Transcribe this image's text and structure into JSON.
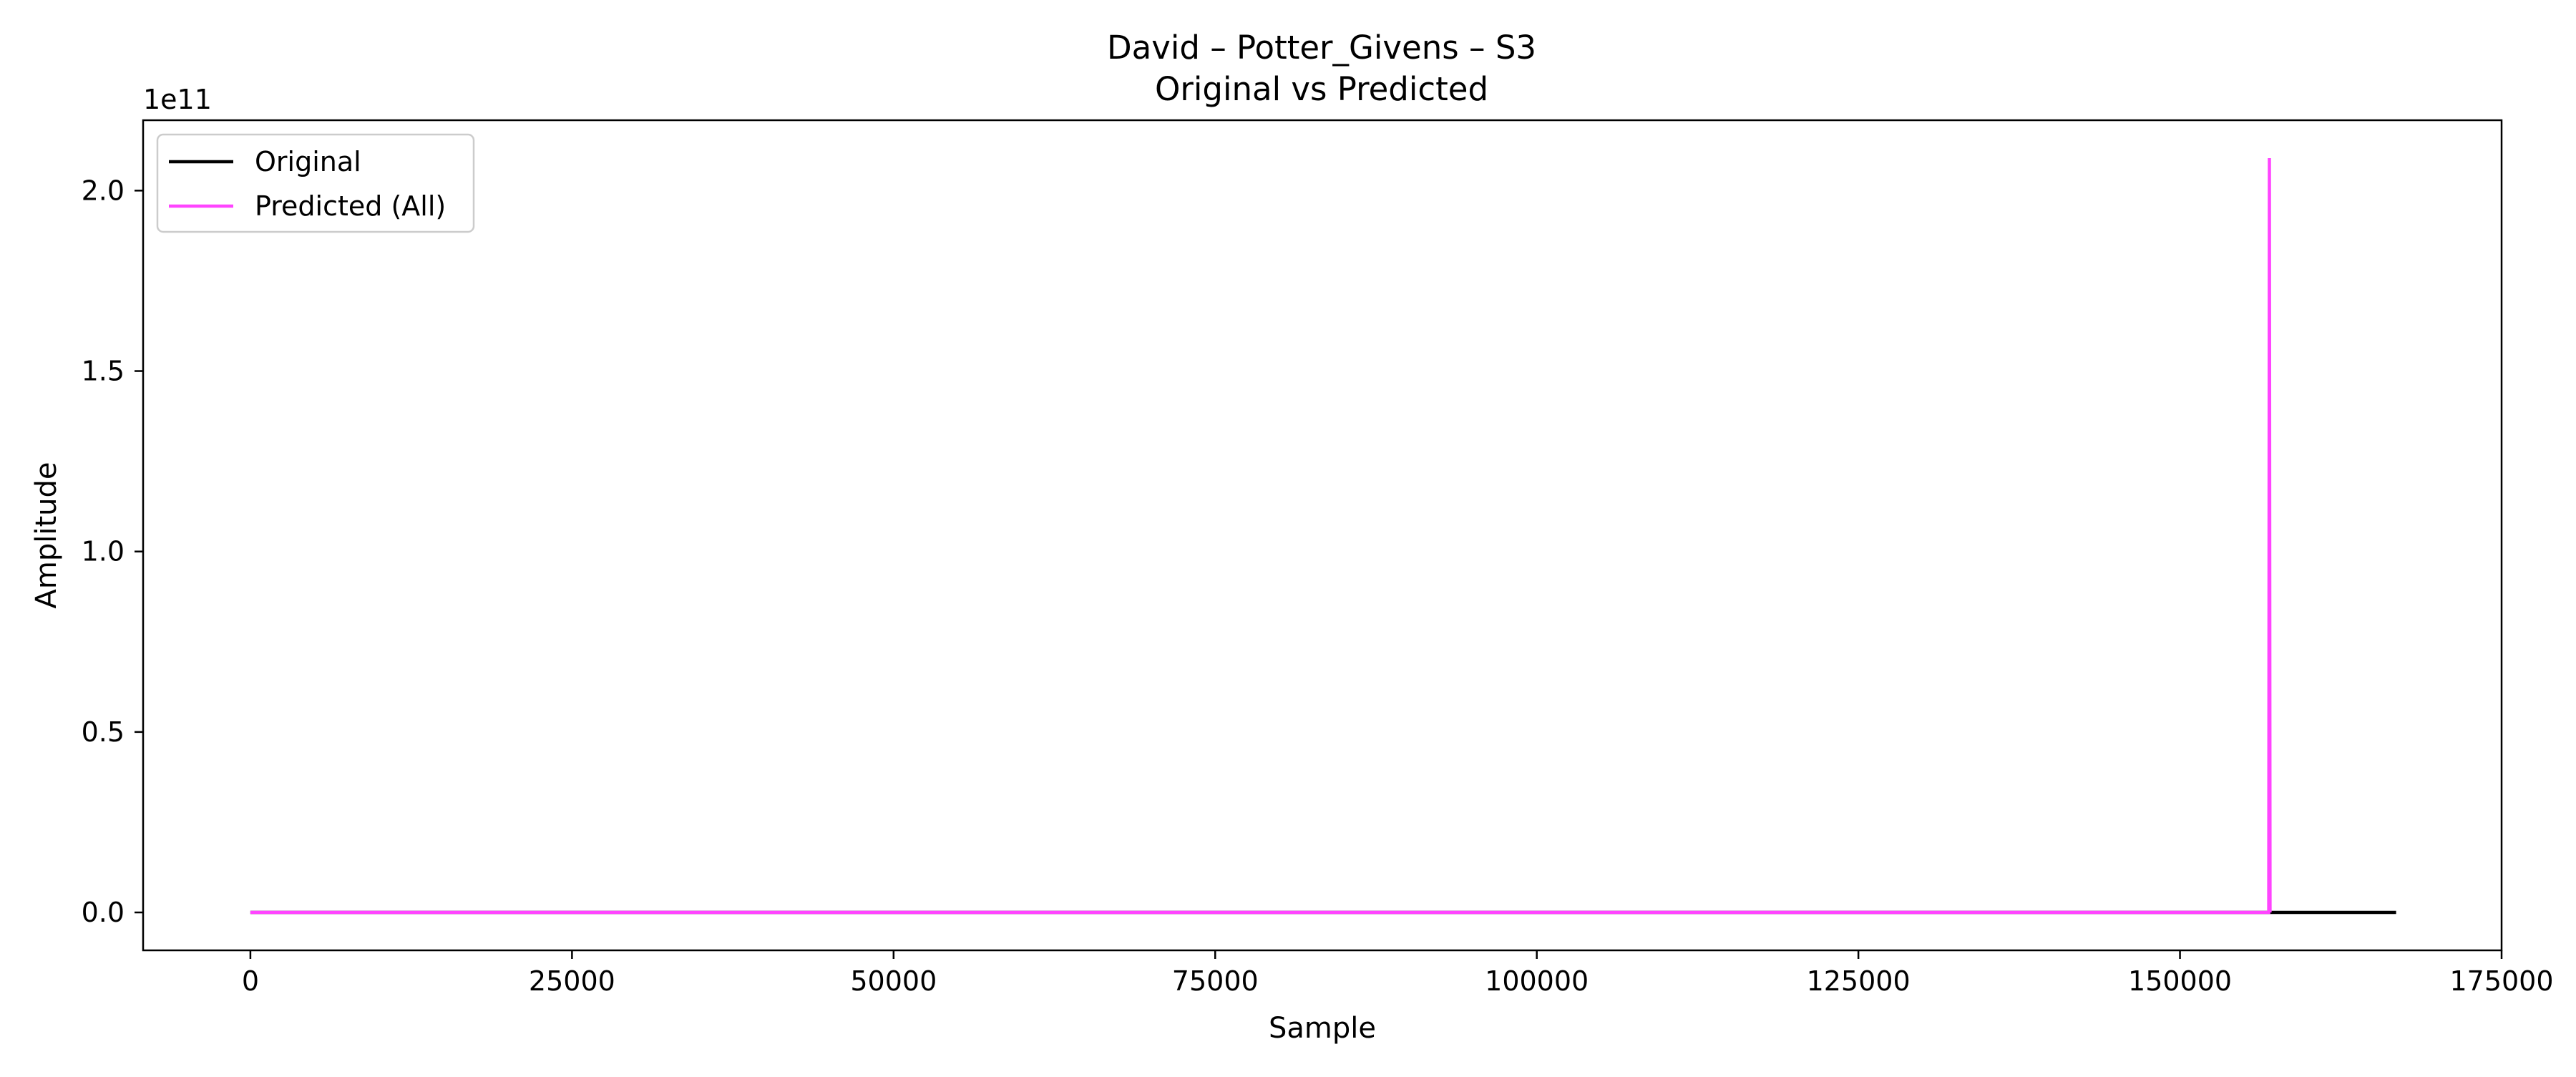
{
  "chart_data": {
    "type": "line",
    "title": "David – Potter_Givens – S3",
    "subtitle": "Original vs Predicted",
    "xlabel": "Sample",
    "ylabel": "Amplitude",
    "y_offset_label": "1e11",
    "y_scale_factor": 100000000000,
    "xlim": [
      -8340,
      175000
    ],
    "ylim": [
      -10500000000,
      219500000000
    ],
    "x_ticks": [
      0,
      25000,
      50000,
      75000,
      100000,
      125000,
      150000,
      175000
    ],
    "x_tick_labels": [
      "0",
      "25000",
      "50000",
      "75000",
      "100000",
      "125000",
      "150000",
      "175000"
    ],
    "y_ticks": [
      0,
      50000000000,
      100000000000,
      150000000000,
      200000000000
    ],
    "y_tick_labels": [
      "0.0",
      "0.5",
      "1.0",
      "1.5",
      "2.0"
    ],
    "grid": false,
    "legend_position": "top-left",
    "series": [
      {
        "name": "Original",
        "color": "#000000",
        "x": [
          0,
          166800
        ],
        "y": [
          0,
          0
        ]
      },
      {
        "name": "Predicted (All)",
        "color": "#ff44ff",
        "x": [
          0,
          156900,
          156950,
          157000
        ],
        "y": [
          0,
          0,
          209000000000,
          0
        ]
      }
    ]
  }
}
